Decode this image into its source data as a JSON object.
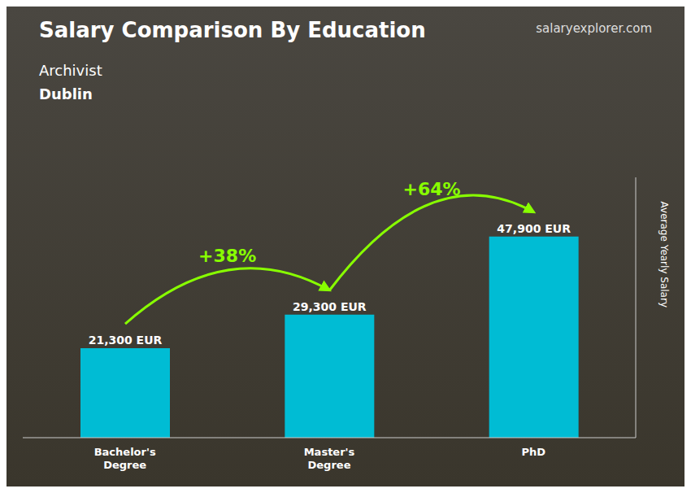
{
  "chart_data": {
    "type": "bar",
    "title": "Salary Comparison By Education",
    "subtitle": [
      "Archivist",
      "Dublin"
    ],
    "categories": [
      "Bachelor's\nDegree",
      "Master's\nDegree",
      "PhD"
    ],
    "values": [
      21300,
      29300,
      47900
    ],
    "value_labels": [
      "21,300 EUR",
      "29,300 EUR",
      "47,900 EUR"
    ],
    "data_labels": true,
    "color": "#00bcd4",
    "ylabel": "Average Yearly Salary",
    "ylim": [
      0,
      62000
    ],
    "tick_labels": "x",
    "grid": false,
    "annotations": [
      {
        "text": "+38%",
        "color": "#88ff00"
      },
      {
        "text": "+64%",
        "color": "#88ff00"
      },
      {
        "text": "salaryexplorer.com"
      }
    ]
  }
}
